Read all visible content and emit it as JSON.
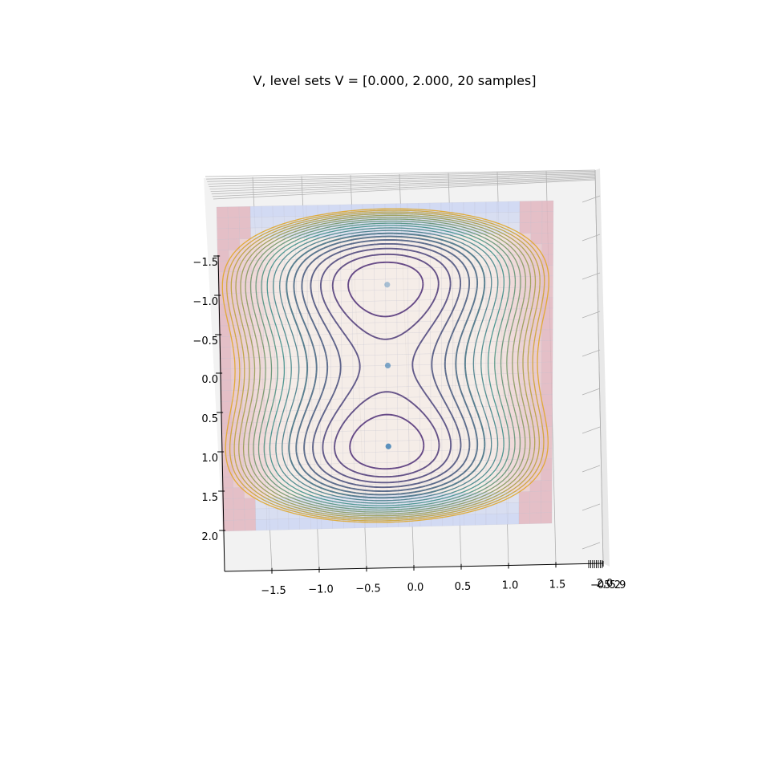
{
  "chart_data": {
    "type": "surface3d-contour",
    "title": "V, level sets V = [0.000, 2.000, 20 samples]",
    "x_ticks": [
      "−1.5",
      "−1.0",
      "−0.5",
      "0.0",
      "0.5",
      "1.0",
      "1.5",
      "2.0"
    ],
    "y_ticks": [
      "−1.5",
      "−1.0",
      "−0.5",
      "0.0",
      "0.5",
      "1.0",
      "1.5",
      "2.0"
    ],
    "z_tick_cluster": "−0.5529",
    "xlim": [
      -2,
      2
    ],
    "ylim": [
      -2,
      2
    ],
    "level_range": [
      0.0,
      2.0
    ],
    "level_samples": 20,
    "points": [
      {
        "x": 0.0,
        "y": -1.0
      },
      {
        "x": 0.0,
        "y": 0.0
      },
      {
        "x": 0.0,
        "y": 1.0
      }
    ],
    "colors": {
      "surface_center": "#f6ece6",
      "surface_edge": "#e2b6bf",
      "surface_low": "#c8d4f4",
      "contour_low": "#5a2d7a",
      "contour_mid": "#3f8f8a",
      "contour_high": "#f2a81c",
      "point": "#4a86b8",
      "grid": "#b0b0b0",
      "pane": "#f2f2f2"
    }
  }
}
